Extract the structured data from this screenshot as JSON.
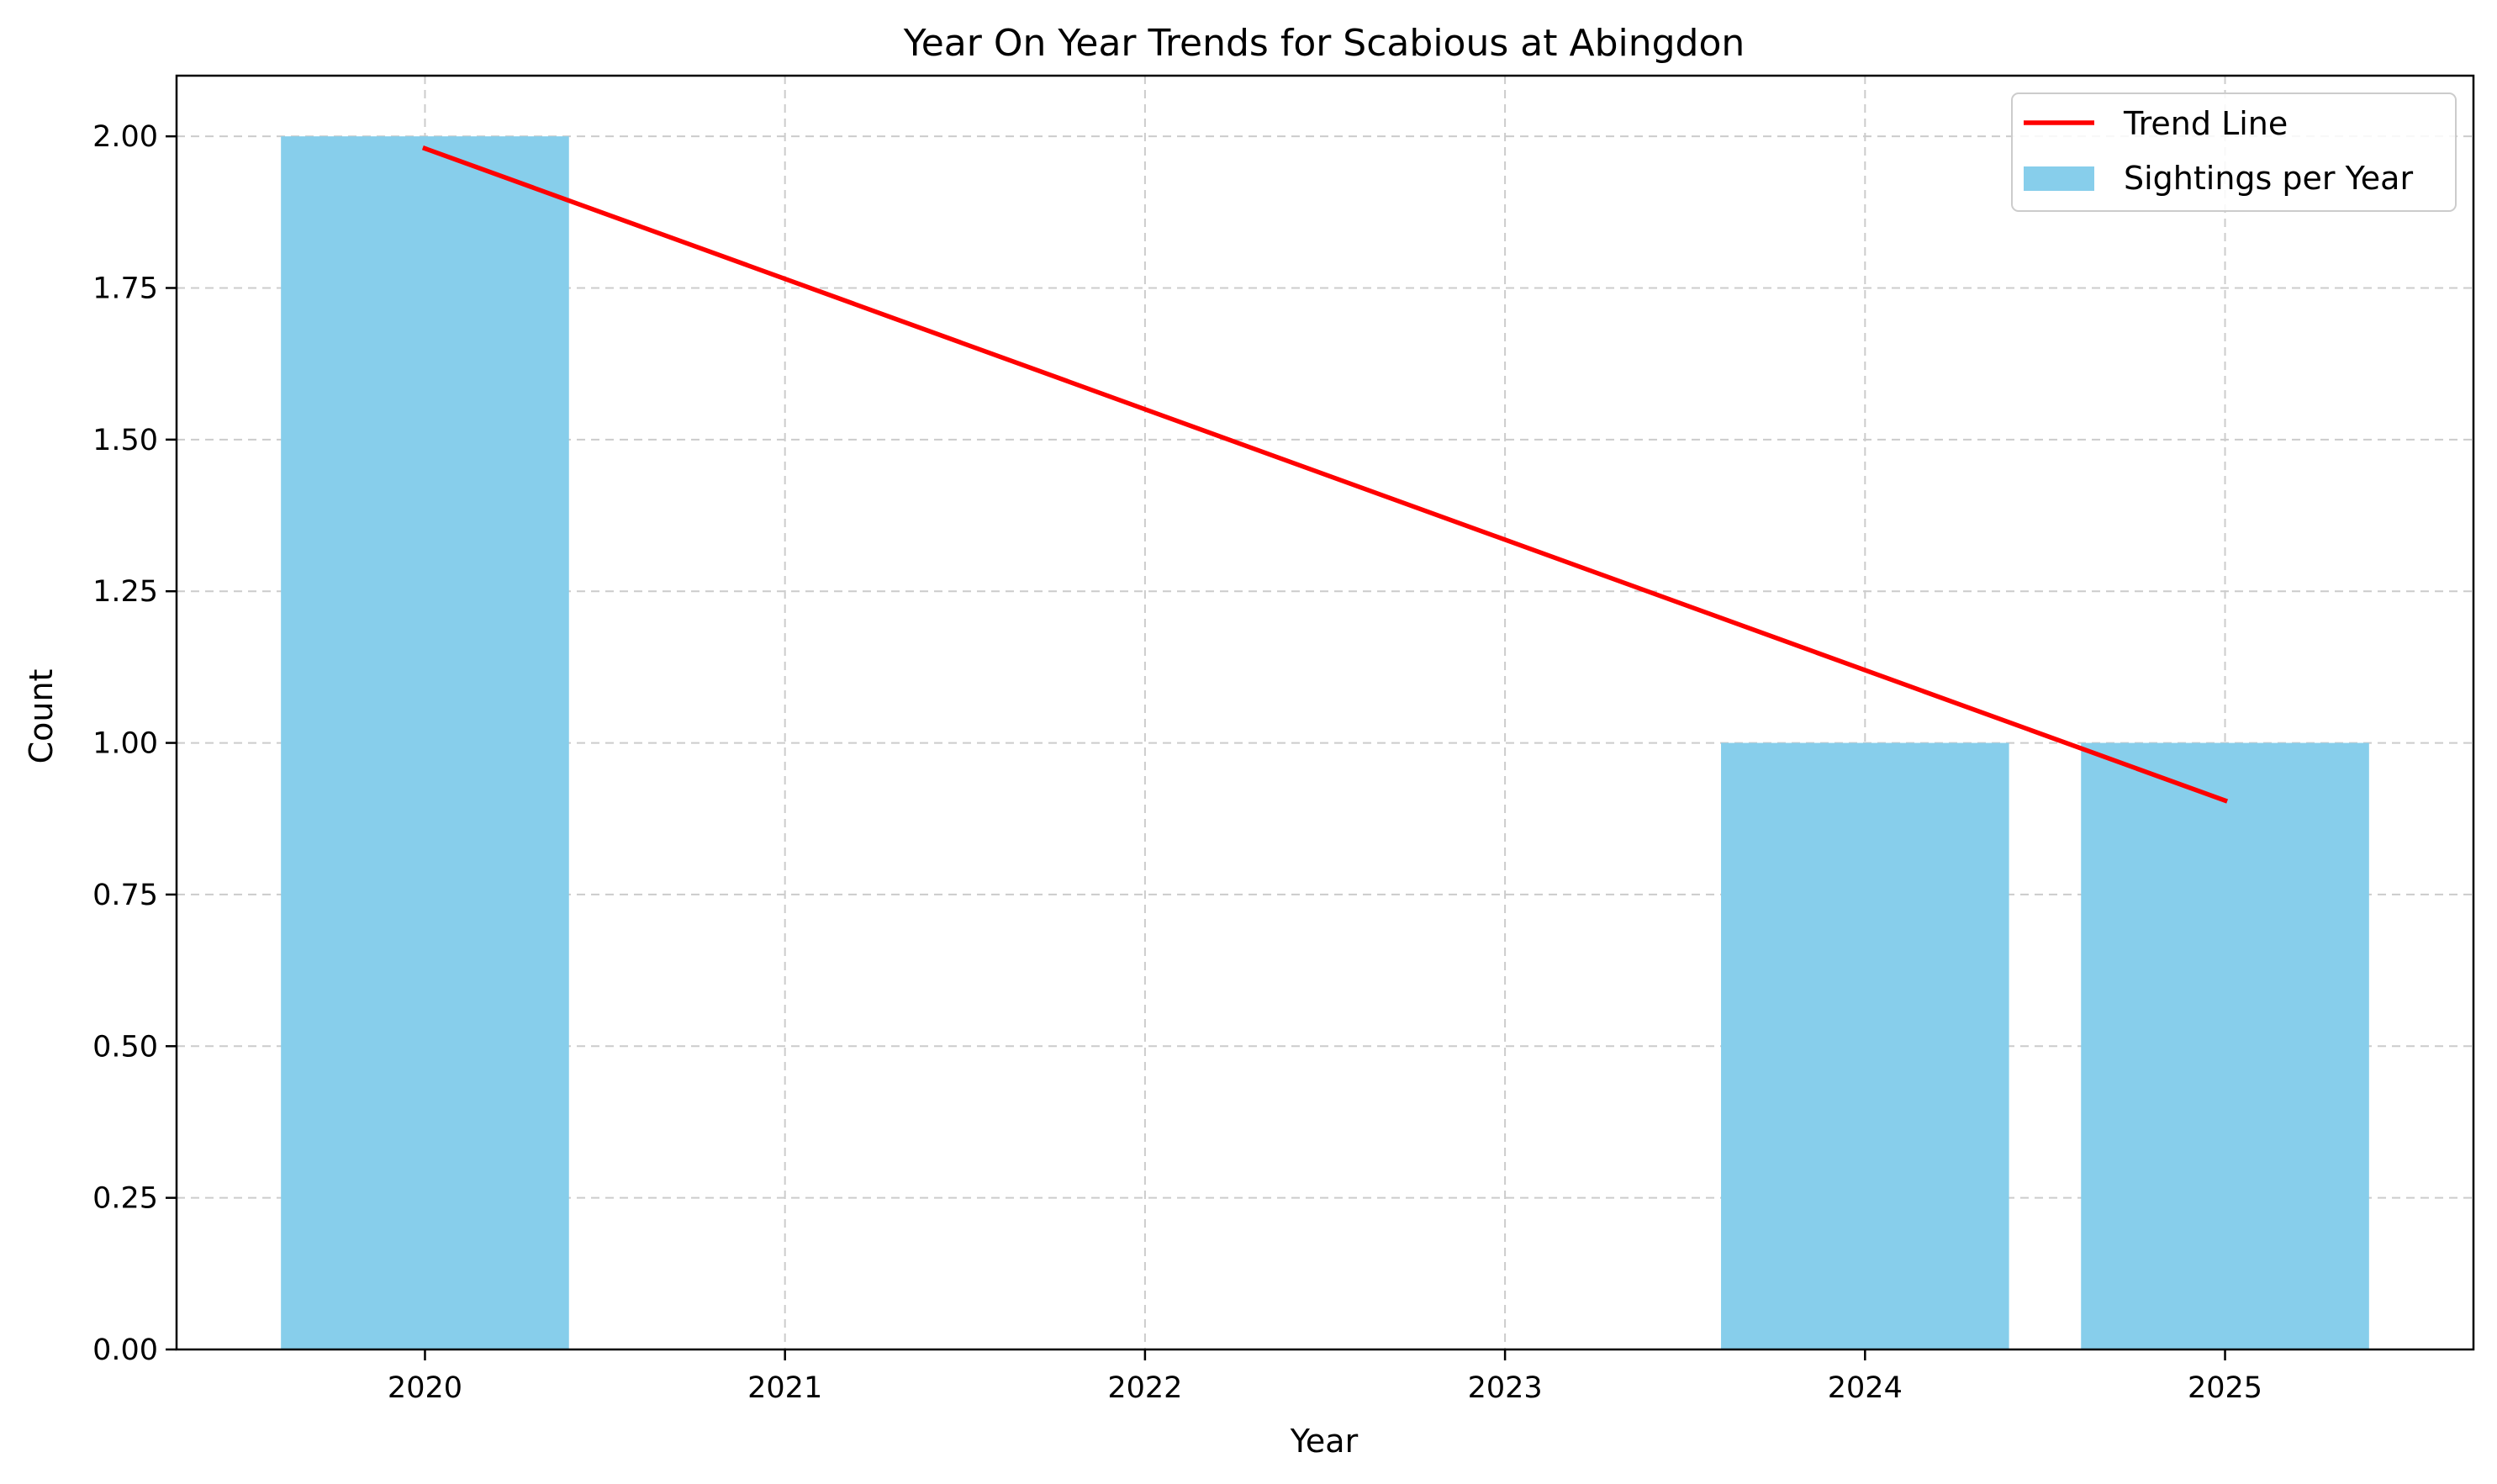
{
  "chart_data": {
    "type": "bar",
    "title": "Year On Year Trends for Scabious at Abingdon",
    "xlabel": "Year",
    "ylabel": "Count",
    "categories": [
      2020,
      2021,
      2022,
      2023,
      2024,
      2025
    ],
    "x_tick_labels": [
      "2020",
      "2021",
      "2022",
      "2023",
      "2024",
      "2025"
    ],
    "y_tick_labels": [
      "0.00",
      "0.25",
      "0.50",
      "0.75",
      "1.00",
      "1.25",
      "1.50",
      "1.75",
      "2.00"
    ],
    "y_ticks": [
      0,
      0.25,
      0.5,
      0.75,
      1.0,
      1.25,
      1.5,
      1.75,
      2.0
    ],
    "xlim": [
      2019.31,
      2025.69
    ],
    "ylim": [
      0,
      2.1
    ],
    "grid": true,
    "legend_position": "top-right",
    "series": [
      {
        "name": "Sightings per Year",
        "kind": "bar",
        "color": "#87CEEB",
        "x": [
          2020,
          2024,
          2025
        ],
        "values": [
          2,
          1,
          1
        ]
      },
      {
        "name": "Trend Line",
        "kind": "line",
        "color": "#ff0000",
        "x": [
          2020,
          2025
        ],
        "values": [
          1.98,
          0.905
        ]
      }
    ]
  }
}
